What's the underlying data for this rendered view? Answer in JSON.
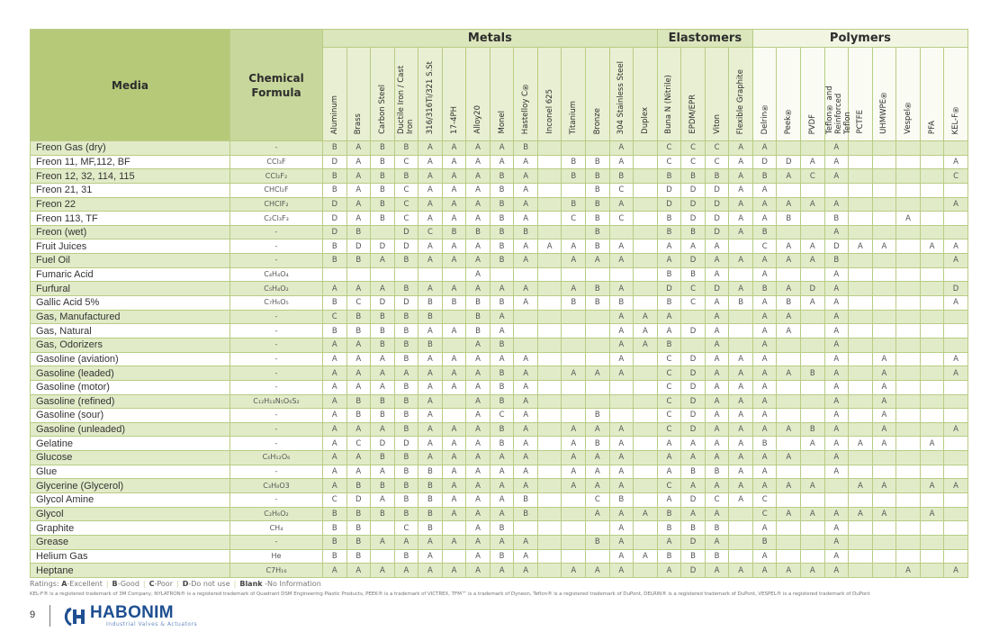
{
  "header": {
    "media": "Media",
    "formula": "Chemical Formula",
    "groups": [
      {
        "label": "Metals",
        "columns": [
          "Aluminum",
          "Brass",
          "Carbon Steel",
          "Ductile Iron / Cast Iron",
          "316/316Ti/321 S.St",
          "17-4PH",
          "Alloy20",
          "Monel",
          "Hastelloy C®",
          "Inconel 625",
          "Titanium",
          "Bronze",
          "304 Stainless Steel",
          "Duplex"
        ]
      },
      {
        "label": "Elastomers",
        "columns": [
          "Buna N (Nitrile)",
          "EPDM/EPR",
          "Viton",
          "Flexible Graphite"
        ]
      },
      {
        "label": "Polymers",
        "columns": [
          "Delrin®",
          "Peek®",
          "PVDF",
          "Teflon® and Reinforced\nTeflon",
          "PCTFE",
          "UHMWPE®",
          "Vespel®",
          "PFA",
          "KEL-F®"
        ]
      }
    ]
  },
  "rows": [
    {
      "media": "Freon Gas (dry)",
      "formula": "-",
      "ratings": "BABBAAAAB...A.CCCAA..A....."
    },
    {
      "media": "Freon 11, MF,112, BF",
      "formula": "CCl₃F",
      "ratings": "DABCAAAAA.BBA.CCCADDAA....A"
    },
    {
      "media": "Freon 12, 32, 114, 115",
      "formula": "CCl₂F₂",
      "ratings": "BABBAAABA.BBB.BBBABACA....C"
    },
    {
      "media": "Freon 21, 31",
      "formula": "CHCl₂F",
      "ratings": "BABCAAABA..BC.DDDAA........"
    },
    {
      "media": "Freon 22",
      "formula": "CHClF₂",
      "ratings": "DABCAAABA.BBA.DDDAAAAA....A"
    },
    {
      "media": "Freon 113, TF",
      "formula": "C₂Cl₃F₃",
      "ratings": "DABCAAABA.CBC.BDDAAB.B..A.."
    },
    {
      "media": "Freon (wet)",
      "formula": "-",
      "ratings": "DB.DCBBBB..B..BBDAB..A....."
    },
    {
      "media": "Fruit Juices",
      "formula": "-",
      "ratings": "BDDDAAABAAABA.AAA.CAADAA.AA"
    },
    {
      "media": "Fuel Oil",
      "formula": "-",
      "ratings": "BBABAAABA.AAA.ADAAAAAB....A"
    },
    {
      "media": "Fumaric Acid",
      "formula": "C₄H₄O₄",
      "ratings": "......A.......BBA.A..A....."
    },
    {
      "media": "Furfural",
      "formula": "C₅H₄O₂",
      "ratings": "AAABAAAAA.ABA.DCDABADA....D"
    },
    {
      "media": "Gallic Acid 5%",
      "formula": "C₇H₆O₅",
      "ratings": "BCDDBBBBA.BBB.BCABABAA....A"
    },
    {
      "media": "Gas, Manufactured",
      "formula": "-",
      "ratings": "CBBBB.BA....AAA.A.AA.A....."
    },
    {
      "media": "Gas, Natural",
      "formula": "-",
      "ratings": "BBBBAABA....AAADA.AA.A....."
    },
    {
      "media": "Gas, Odorizers",
      "formula": "-",
      "ratings": "AABBB.AB....AAB.A.A..A....."
    },
    {
      "media": "Gasoline (aviation)",
      "formula": "-",
      "ratings": "AAABAAAAA...A.CDAAA..A.A..A"
    },
    {
      "media": "Gasoline (leaded)",
      "formula": "-",
      "ratings": "AAAAAAABA.AAA.CDAAAABA.A..A"
    },
    {
      "media": "Gasoline (motor)",
      "formula": "-",
      "ratings": "AAABAAABA.....CDAAA..A.A..."
    },
    {
      "media": "Gasoline (refined)",
      "formula": "C₁₂H₁₃N₅O₆S₂",
      "ratings": "ABBBA.ABA.....CDAAA..A.A..."
    },
    {
      "media": "Gasoline (sour)",
      "formula": "-",
      "ratings": "ABBBA.ACA..B..CDAAA..A.A..."
    },
    {
      "media": "Gasoline (unleaded)",
      "formula": "-",
      "ratings": "AAABAAABA.AAA.CDAAAABA.A..A"
    },
    {
      "media": "Gelatine",
      "formula": "-",
      "ratings": "ACDDAAABA.ABA.AAAAB.AAAA.A."
    },
    {
      "media": "Glucose",
      "formula": "C₆H₁₂O₆",
      "ratings": "AABBAAAAA.AAA.AAAAAA.A....."
    },
    {
      "media": "Glue",
      "formula": "-",
      "ratings": "AAABBAAAA.AAA.ABBAA..A....."
    },
    {
      "media": "Glycerine (Glycerol)",
      "formula": "C₃H₈O3",
      "ratings": "ABBBBAAAA.AAA.CAAAAAA.AA.AA"
    },
    {
      "media": "Glycol Amine",
      "formula": "-",
      "ratings": "CDABBAAAB..CB.ADCAC........"
    },
    {
      "media": "Glycol",
      "formula": "C₂H₆O₂",
      "ratings": "BBBBBAAAB..AAABAA.CAAAAA.A."
    },
    {
      "media": "Graphite",
      "formula": "CH₄",
      "ratings": "BB.CB.AB....A.BBB.A..A....."
    },
    {
      "media": "Grease",
      "formula": "-",
      "ratings": "BBAAAAAAA..BA.ADA.B..A....."
    },
    {
      "media": "Helium Gas",
      "formula": "He",
      "ratings": "BB.BA.ABA...AABBB.A..A....."
    },
    {
      "media": "Heptane",
      "formula": "C7H₁₆",
      "ratings": "AAAAAAAAA.AAA.ADAAAAAA..A.A"
    }
  ],
  "legend": {
    "prefix": "Ratings:",
    "items": [
      {
        "key": "A",
        "text": "-Excellent"
      },
      {
        "key": "B",
        "text": "-Good"
      },
      {
        "key": "C",
        "text": "-Poor"
      },
      {
        "key": "D",
        "text": "-Do not use"
      },
      {
        "key": "Blank",
        "text": " -No Information"
      }
    ]
  },
  "trademarks": "KEL-F® is a registered trademark of 3M Company, NYLATRON® is a registered trademark of Quadrant DSM Engineering Plastic Products, PEEK® is a trademark of VICTREX, TFM™ is a trademark of Dyneon, Teflon® is a registered trademark of DuPont, DELRIN® is a registered trademark of DuPont, VESPEL® is a registered trademark of DuPont",
  "footer": {
    "page_number": "9",
    "logo_name": "HABONIM",
    "logo_tagline": "Industrial Valves & Actuators"
  },
  "colors": {
    "brand": "#1e4f91",
    "header_green": "#b6c979",
    "row_alt": "#e2ebc8",
    "border": "#b8cc84"
  }
}
